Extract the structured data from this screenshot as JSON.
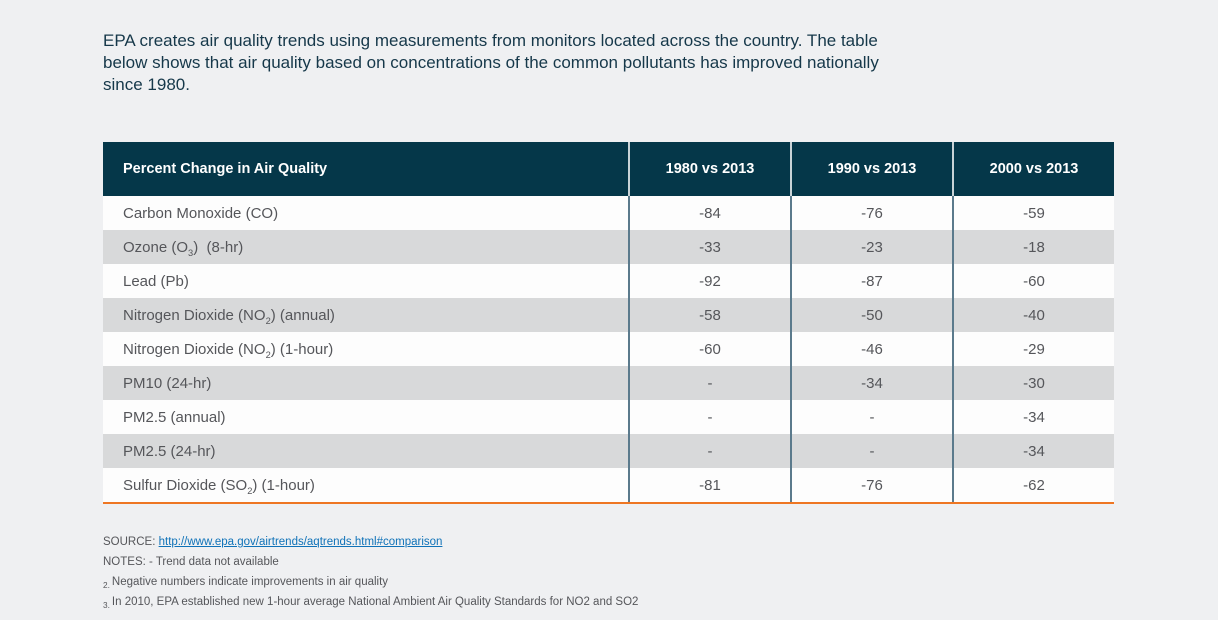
{
  "colors": {
    "page_bg": "#eff0f2",
    "intro_color": "#16384a",
    "header_bg": "#053749",
    "header_divider": "#c9d3d7",
    "body_divider": "#5b7a8c",
    "row_alt_bg": "#d8d9da",
    "body_text": "#55565a",
    "accent_orange": "#ee7623",
    "link_color": "#0f72b8"
  },
  "intro": {
    "lines": [
      "EPA creates air quality trends using measurements from monitors located across the country. The table",
      "below shows that air quality based on concentrations of the common pollutants has improved nationally",
      "since 1980."
    ]
  },
  "table": {
    "headers": [
      "Percent Change in Air Quality",
      "1980 vs 2013",
      "1990 vs 2013",
      "2000 vs 2013"
    ],
    "rows": [
      {
        "name_pre": "Carbon Monoxide (CO)",
        "name_sub": "",
        "name_post": "",
        "values": [
          "-84",
          "-76",
          "-59"
        ]
      },
      {
        "name_pre": "Ozone (O",
        "name_sub": "3",
        "name_post": ")  (8-hr)",
        "values": [
          "-33",
          "-23",
          "-18"
        ]
      },
      {
        "name_pre": "Lead (Pb)",
        "name_sub": "",
        "name_post": "",
        "values": [
          "-92",
          "-87",
          "-60"
        ]
      },
      {
        "name_pre": "Nitrogen Dioxide (NO",
        "name_sub": "2",
        "name_post": ") (annual)",
        "values": [
          "-58",
          "-50",
          "-40"
        ]
      },
      {
        "name_pre": "Nitrogen Dioxide (NO",
        "name_sub": "2",
        "name_post": ") (1-hour)",
        "values": [
          "-60",
          "-46",
          "-29"
        ]
      },
      {
        "name_pre": "PM10 (24-hr)",
        "name_sub": "",
        "name_post": "",
        "values": [
          "-",
          "-34",
          "-30"
        ]
      },
      {
        "name_pre": "PM2.5 (annual)",
        "name_sub": "",
        "name_post": "",
        "values": [
          "-",
          "-",
          "-34"
        ]
      },
      {
        "name_pre": "PM2.5 (24-hr)",
        "name_sub": "",
        "name_post": "",
        "values": [
          "-",
          "-",
          "-34"
        ]
      },
      {
        "name_pre": "Sulfur Dioxide (SO",
        "name_sub": "2",
        "name_post": ") (1-hour)",
        "values": [
          "-81",
          "-76",
          "-62"
        ]
      }
    ]
  },
  "footer": {
    "source_label": "SOURCE:",
    "source_link": "http://www.epa.gov/airtrends/aqtrends.html#comparison",
    "notes_line": "NOTES: - Trend data not available",
    "subnotes": [
      {
        "sub": "2.",
        "text": "Negative numbers indicate improvements in air quality"
      },
      {
        "sub": "3.",
        "text": "In 2010, EPA established new 1-hour average National Ambient Air Quality Standards for NO2 and SO2"
      }
    ]
  }
}
